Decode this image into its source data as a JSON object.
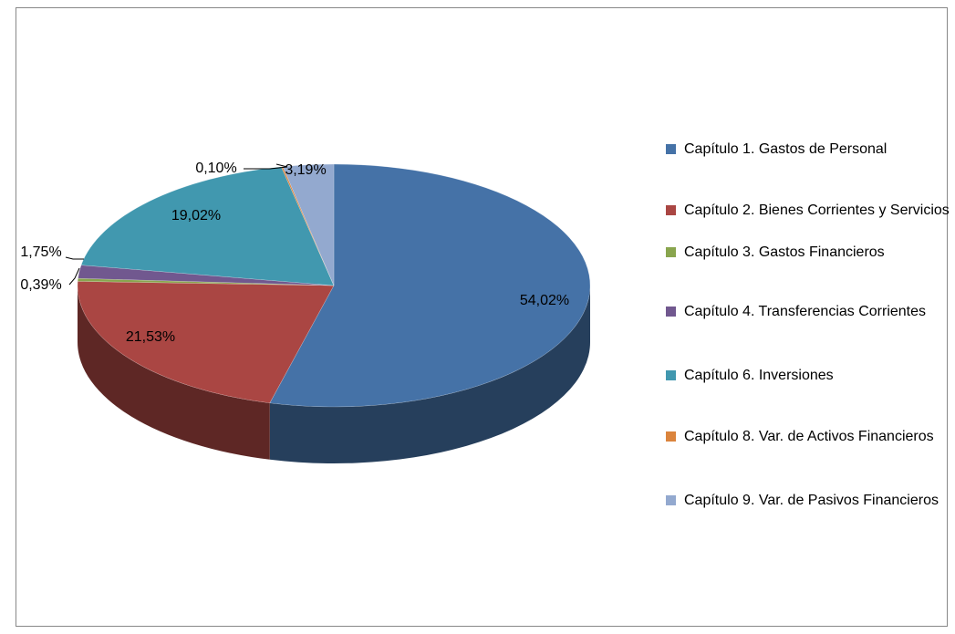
{
  "chart_data": {
    "type": "pie",
    "categories": [
      "Capítulo 1. Gastos de Personal",
      "Capítulo 2. Bienes Corrientes y Servicios",
      "Capítulo 3. Gastos Financieros",
      "Capítulo 4. Transferencias Corrientes",
      "Capítulo 6. Inversiones",
      "Capítulo 8. Var. de Activos Financieros",
      "Capítulo 9. Var. de Pasivos Financieros"
    ],
    "values": [
      54.02,
      21.53,
      0.39,
      1.75,
      19.02,
      0.1,
      3.19
    ],
    "value_labels": [
      "54,02%",
      "21,53%",
      "0,39%",
      "1,75%",
      "19,02%",
      "0,10%",
      "3,19%"
    ],
    "colors": [
      "#4572A7",
      "#AA4643",
      "#89A54E",
      "#71588F",
      "#4198AF",
      "#DB843D",
      "#93A9CF"
    ],
    "legend": "right"
  }
}
